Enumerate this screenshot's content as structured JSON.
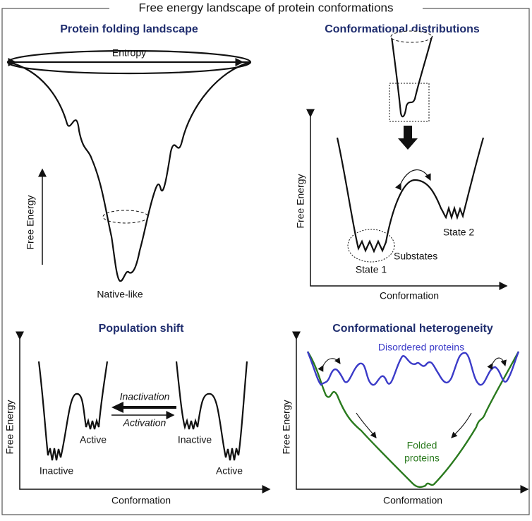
{
  "title": "Free energy landscape of protein conformations",
  "panels": [
    {
      "title": "Protein folding landscape",
      "labels": [
        "Entropy",
        "Free Energy",
        "Native-like"
      ]
    },
    {
      "title": "Conformational distributions",
      "labels": [
        "Free Energy",
        "Conformation",
        "State 1",
        "State 2",
        "Substates"
      ]
    },
    {
      "title": "Population shift",
      "labels": [
        "Free Energy",
        "Conformation",
        "Inactive",
        "Active",
        "Inactivation",
        "Activation",
        "Inactive",
        "Active"
      ]
    },
    {
      "title": "Conformational heterogeneity",
      "labels": [
        "Free Energy",
        "Conformation",
        "Disordered proteins",
        "Folded",
        "proteins"
      ]
    }
  ]
}
